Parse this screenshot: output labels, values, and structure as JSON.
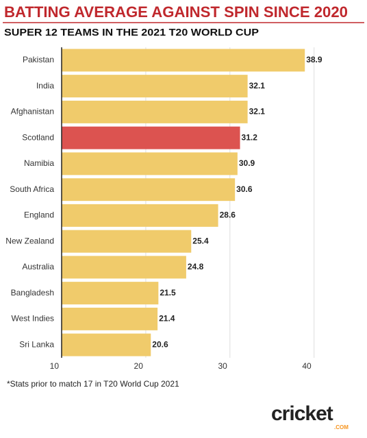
{
  "chart_data": {
    "type": "bar",
    "orientation": "horizontal",
    "title": "BATTING AVERAGE AGAINST SPIN SINCE 2020",
    "subtitle": "SUPER 12 TEAMS IN THE 2021 T20 WORLD CUP",
    "categories": [
      "Pakistan",
      "India",
      "Afghanistan",
      "Scotland",
      "Namibia",
      "South Africa",
      "England",
      "New Zealand",
      "Australia",
      "Bangladesh",
      "West Indies",
      "Sri Lanka"
    ],
    "values": [
      38.9,
      32.1,
      32.1,
      31.2,
      30.9,
      30.6,
      28.6,
      25.4,
      24.8,
      21.5,
      21.4,
      20.6
    ],
    "colors": [
      "#f0cb6b",
      "#f0cb6b",
      "#f0cb6b",
      "#dc5350",
      "#f0cb6b",
      "#f0cb6b",
      "#f0cb6b",
      "#f0cb6b",
      "#f0cb6b",
      "#f0cb6b",
      "#f0cb6b",
      "#f0cb6b"
    ],
    "xlim": [
      10,
      41
    ],
    "xticks": [
      10,
      20,
      30,
      40
    ],
    "grid": true,
    "footnote": "*Stats prior to match 17 in T20 World Cup 2021",
    "logo": {
      "name": "cricket",
      "suffix": ".COM"
    }
  }
}
